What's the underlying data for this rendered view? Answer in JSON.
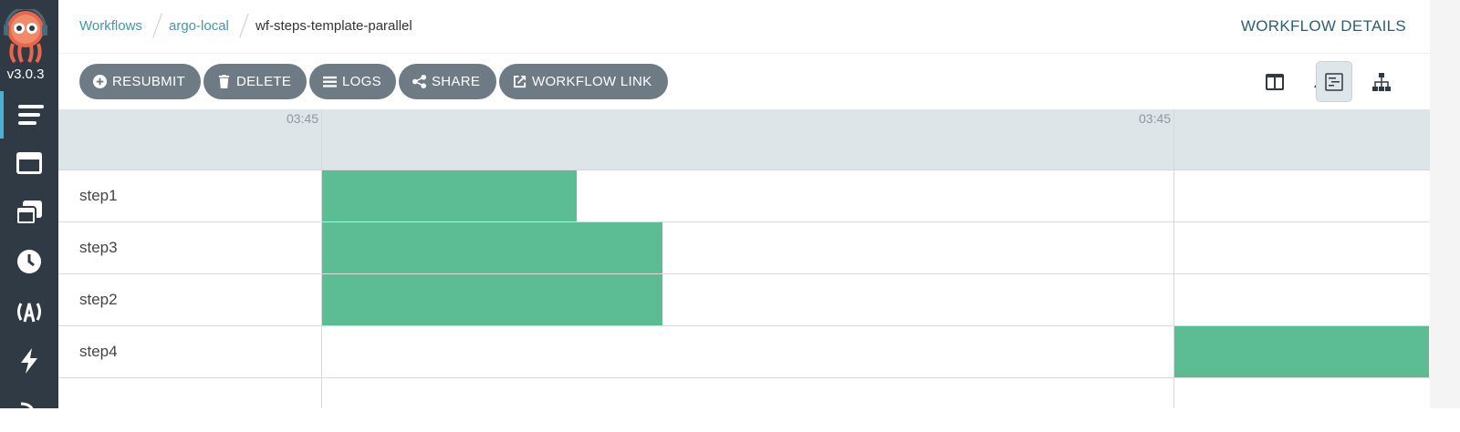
{
  "app": {
    "version": "v3.0.3",
    "nav": [
      {
        "name": "workflows",
        "icon": "bars-icon",
        "active": true
      },
      {
        "name": "workflow-templates",
        "icon": "window-icon",
        "active": false
      },
      {
        "name": "cluster-workflow-templates",
        "icon": "clone-icon",
        "active": false
      },
      {
        "name": "cron-workflows",
        "icon": "clock-icon",
        "active": false
      },
      {
        "name": "event-sources",
        "icon": "broadcast-icon",
        "active": false
      },
      {
        "name": "sensors",
        "icon": "bolt-icon",
        "active": false
      }
    ]
  },
  "header": {
    "breadcrumbs": [
      "Workflows",
      "argo-local",
      "wf-steps-template-parallel"
    ],
    "title": "WORKFLOW DETAILS"
  },
  "toolbar": {
    "resubmit": "RESUBMIT",
    "delete": "DELETE",
    "logs": "LOGS",
    "share": "SHARE",
    "workflow_link": "WORKFLOW LINK",
    "views": [
      {
        "icon": "split-view-icon",
        "active": false
      },
      {
        "icon": "bell-icon",
        "active": false
      },
      {
        "icon": "timeline-view-icon",
        "active": true
      },
      {
        "icon": "graph-view-icon",
        "active": false
      }
    ]
  },
  "timeline": {
    "ticks": [
      "03:45",
      "03:45"
    ],
    "rows": [
      {
        "label": "step1",
        "start": 0.0,
        "end": 0.3
      },
      {
        "label": "step3",
        "start": 0.0,
        "end": 0.4
      },
      {
        "label": "step2",
        "start": 0.0,
        "end": 0.4
      },
      {
        "label": "step4",
        "start": 1.0,
        "end": 1.3
      }
    ]
  },
  "colors": {
    "sidebar": "#2f3a44",
    "accent": "#4697a6",
    "button": "#6e7b85",
    "success_bar": "#5cbd95"
  }
}
